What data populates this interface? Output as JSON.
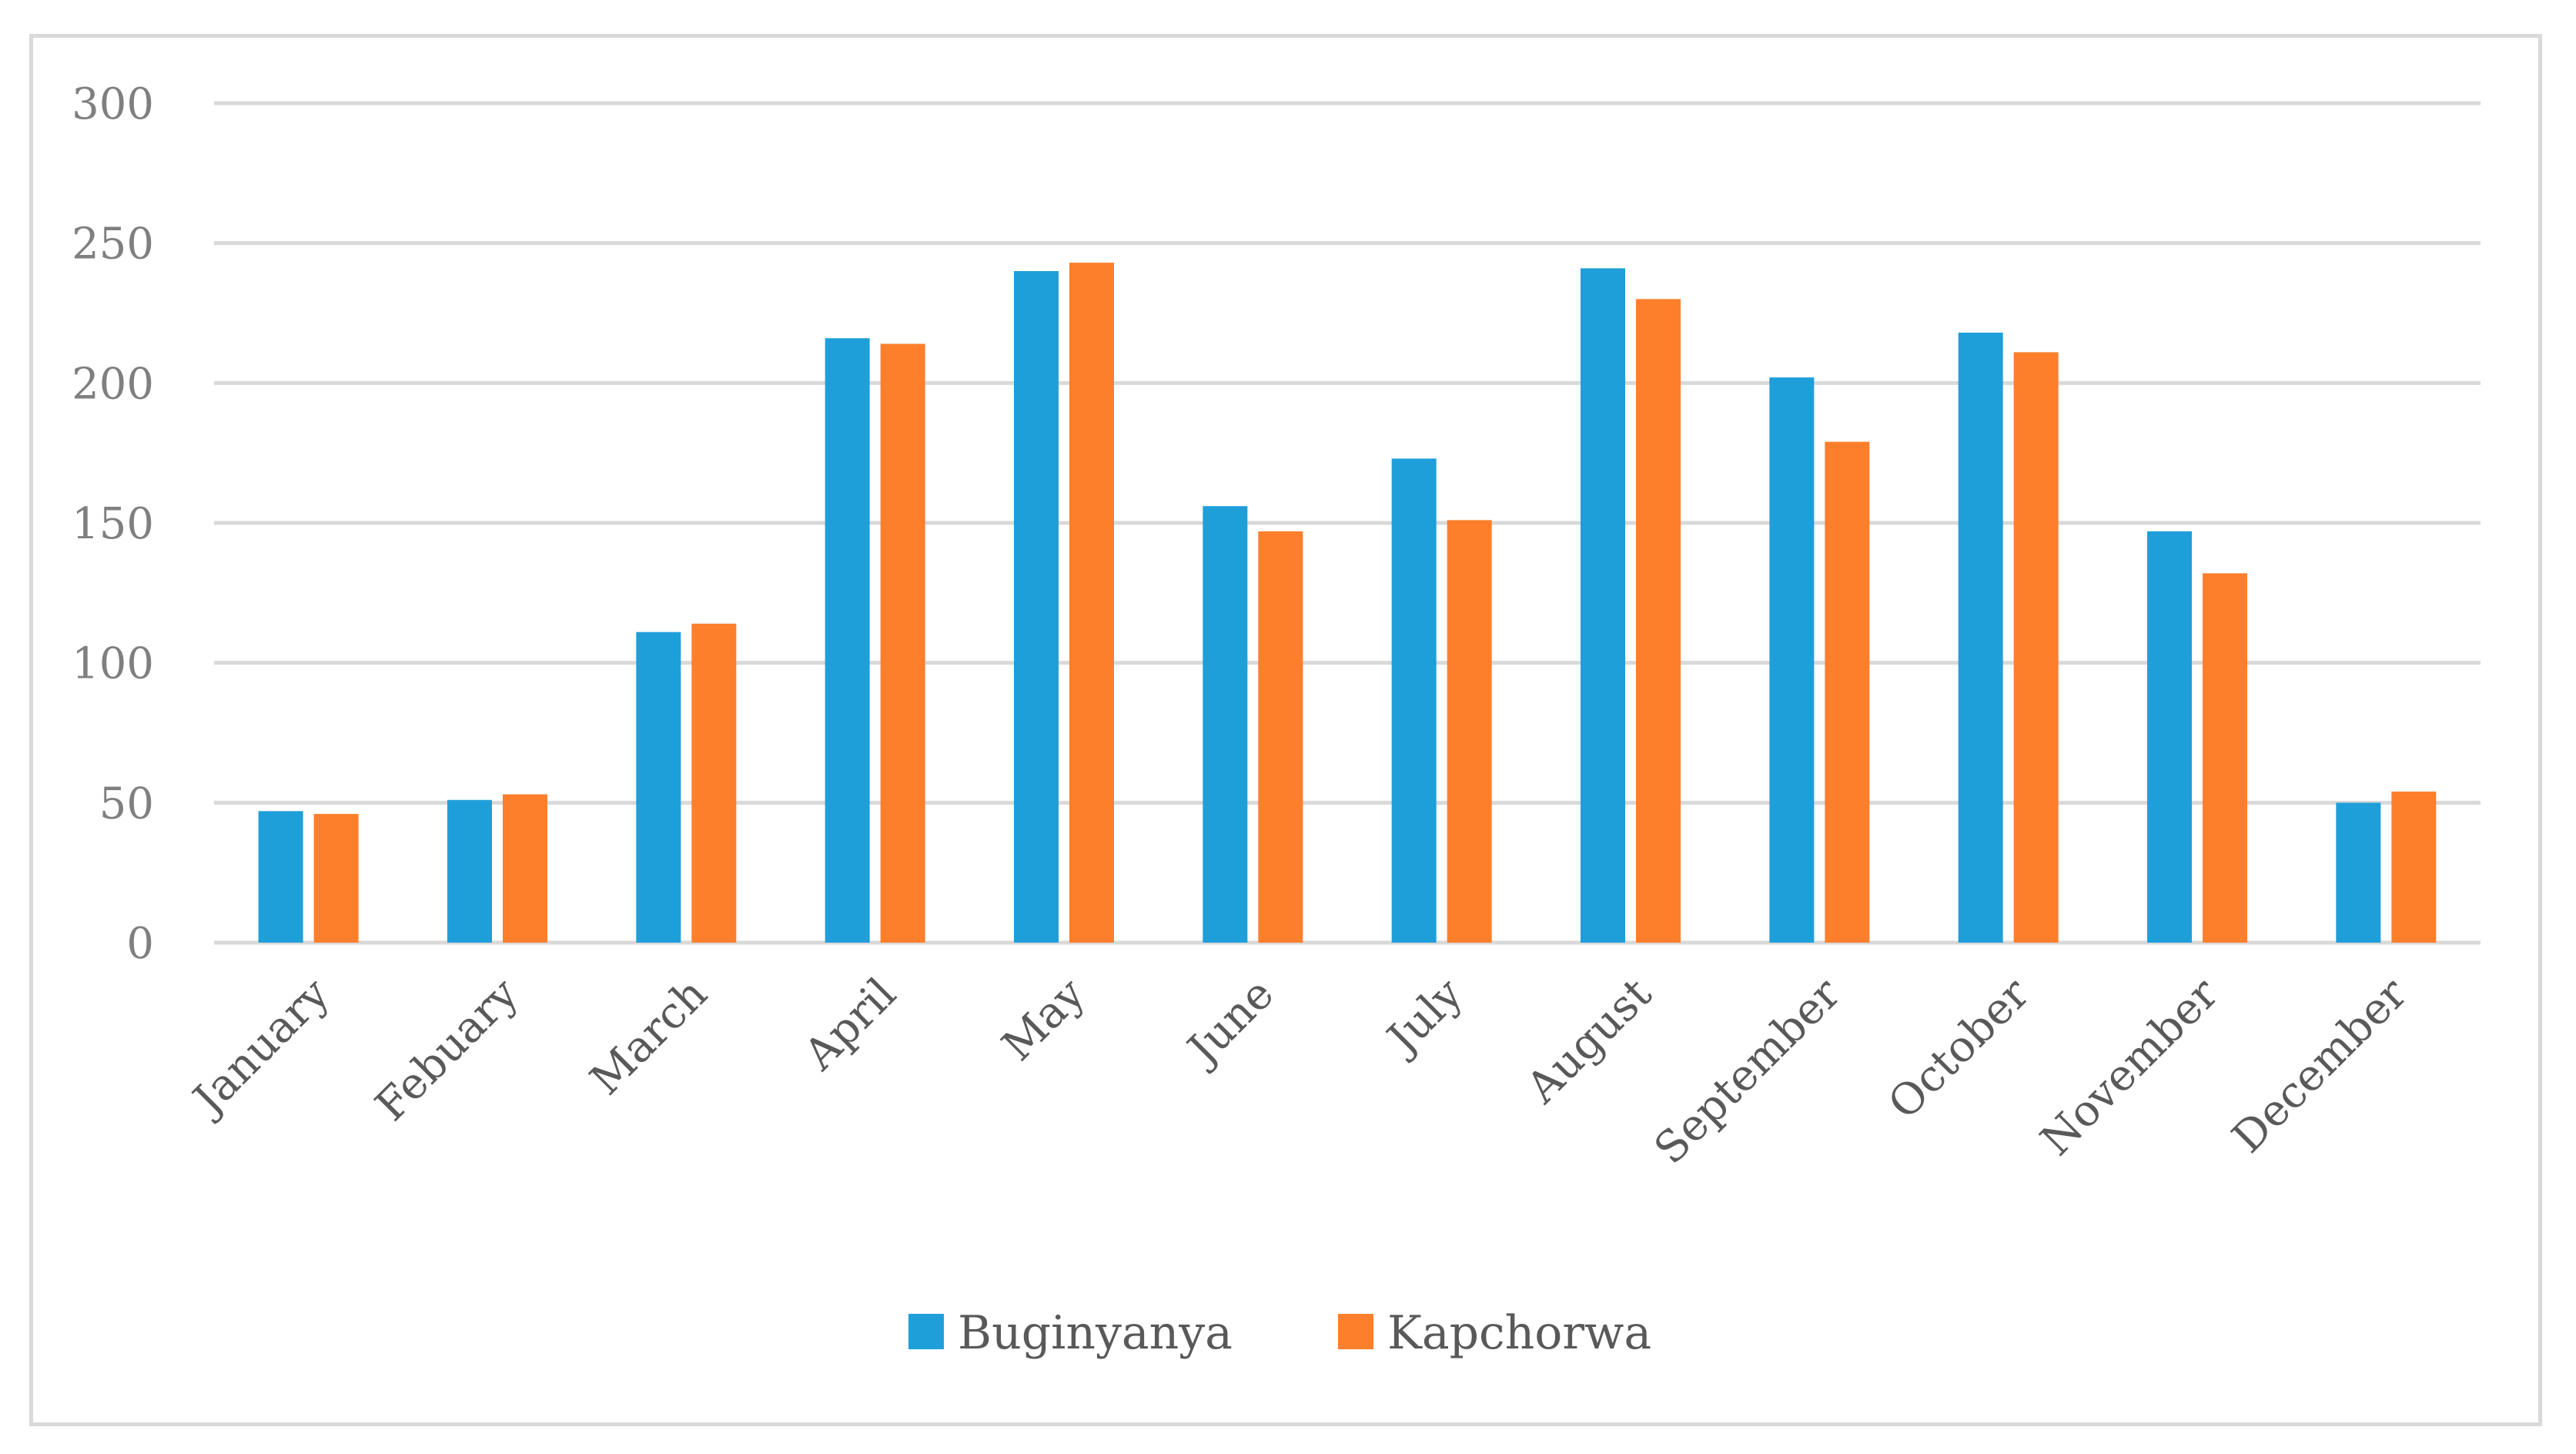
{
  "chart_data": {
    "type": "bar",
    "categories": [
      "January",
      "Febuary",
      "March",
      "April",
      "May",
      "June",
      "July",
      "August",
      "September",
      "October",
      "November",
      "December"
    ],
    "series": [
      {
        "name": "Buginyanya",
        "color": "#1f9fda",
        "values": [
          47,
          51,
          111,
          216,
          240,
          156,
          173,
          241,
          202,
          218,
          147,
          50
        ]
      },
      {
        "name": "Kapchorwa",
        "color": "#fd7f2b",
        "values": [
          46,
          53,
          114,
          214,
          243,
          147,
          151,
          230,
          179,
          211,
          132,
          54
        ]
      }
    ],
    "y_ticks": [
      "0",
      "50",
      "100",
      "150",
      "200",
      "250",
      "300"
    ],
    "ylim": [
      0,
      300
    ],
    "grid": true,
    "legend_position": "bottom",
    "gridline_color": "#d9d9d9"
  }
}
